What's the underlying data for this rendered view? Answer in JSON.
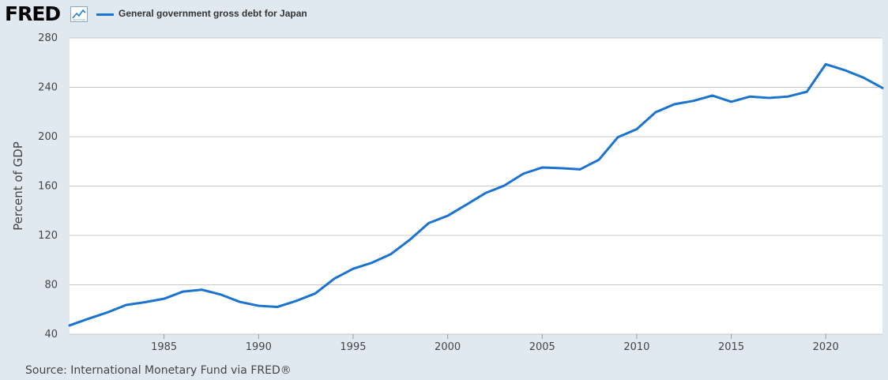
{
  "brand": {
    "name": "FRED",
    "icon": "line-chart-icon"
  },
  "chart_data": {
    "type": "line",
    "title": "",
    "xlabel": "",
    "ylabel": "Percent of GDP",
    "ylim": [
      40,
      280
    ],
    "xlim": [
      1980,
      2023
    ],
    "yticks": [
      40,
      80,
      120,
      160,
      200,
      240,
      280
    ],
    "xticks": [
      1985,
      1990,
      1995,
      2000,
      2005,
      2010,
      2015,
      2020
    ],
    "grid": true,
    "legend_position": "top-left",
    "series": [
      {
        "name": "General government gross debt for Japan",
        "color": "#1a73d1",
        "x": [
          1980,
          1981,
          1982,
          1983,
          1984,
          1985,
          1986,
          1987,
          1988,
          1989,
          1990,
          1991,
          1992,
          1993,
          1994,
          1995,
          1996,
          1997,
          1998,
          1999,
          2000,
          2001,
          2002,
          2003,
          2004,
          2005,
          2006,
          2007,
          2008,
          2009,
          2010,
          2011,
          2012,
          2013,
          2014,
          2015,
          2016,
          2017,
          2018,
          2019,
          2020,
          2021,
          2022,
          2023
        ],
        "values": [
          47.1,
          52.5,
          57.6,
          63.7,
          65.9,
          68.7,
          74.5,
          76.0,
          72.1,
          66.2,
          63.0,
          62.1,
          67.0,
          73.0,
          84.9,
          93.0,
          97.9,
          104.9,
          116.5,
          130.0,
          135.9,
          145.0,
          154.3,
          160.4,
          170.0,
          175.0,
          174.5,
          173.5,
          181.3,
          199.5,
          206.1,
          219.8,
          226.3,
          229.0,
          233.3,
          228.3,
          232.5,
          231.4,
          232.5,
          236.4,
          258.7,
          253.9,
          247.8,
          239.5
        ]
      }
    ]
  },
  "source": "Source: International Monetary Fund via FRED®"
}
